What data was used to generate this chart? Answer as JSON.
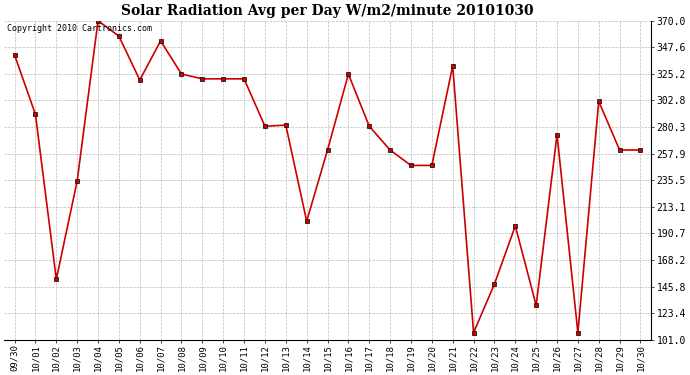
{
  "title": "Solar Radiation Avg per Day W/m2/minute 20101030",
  "copyright": "Copyright 2010 Cartronics.com",
  "labels": [
    "09/30",
    "10/01",
    "10/02",
    "10/03",
    "10/04",
    "10/05",
    "10/06",
    "10/07",
    "10/08",
    "10/09",
    "10/10",
    "10/11",
    "10/12",
    "10/13",
    "10/14",
    "10/15",
    "10/16",
    "10/17",
    "10/18",
    "10/19",
    "10/20",
    "10/21",
    "10/22",
    "10/23",
    "10/24",
    "10/25",
    "10/26",
    "10/27",
    "10/28",
    "10/29",
    "10/30"
  ],
  "values": [
    341,
    291,
    152,
    235,
    370,
    357,
    320,
    353,
    325,
    321,
    321,
    321,
    281,
    282,
    201,
    261,
    325,
    281,
    261,
    248,
    248,
    332,
    107,
    148,
    197,
    130,
    274,
    107,
    302,
    261,
    261
  ],
  "line_color": "#cc0000",
  "marker_color": "#000000",
  "marker_face": "#cc0000",
  "bg_color": "#ffffff",
  "grid_color": "#bbbbbb",
  "ylim": [
    101.0,
    370.0
  ],
  "yticks": [
    101.0,
    123.4,
    145.8,
    168.2,
    190.7,
    213.1,
    235.5,
    257.9,
    280.3,
    302.8,
    325.2,
    347.6,
    370.0
  ],
  "ytick_labels": [
    "101.0",
    "123.4",
    "145.8",
    "168.2",
    "190.7",
    "213.1",
    "235.5",
    "257.9",
    "280.3",
    "302.8",
    "325.2",
    "347.6",
    "370.0"
  ],
  "figwidth": 6.9,
  "figheight": 3.75,
  "dpi": 100
}
